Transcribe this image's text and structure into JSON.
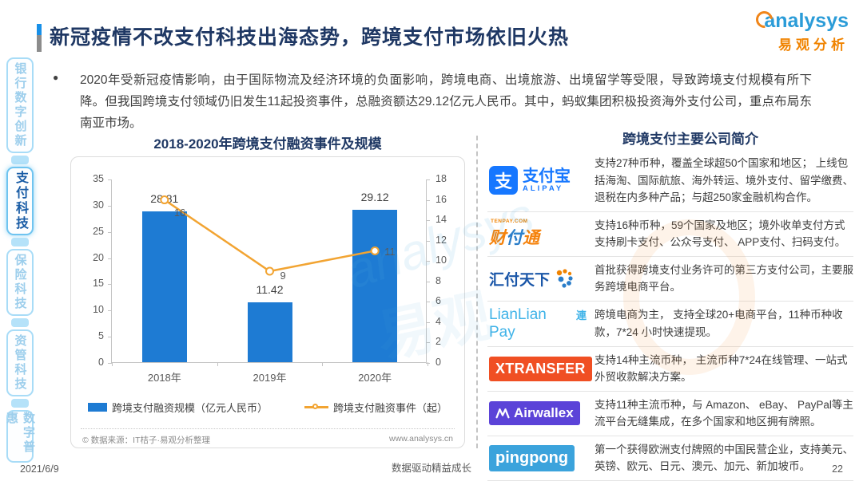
{
  "header": {
    "title": "新冠疫情不改支付科技出海态势，跨境支付市场依旧火热",
    "logo_en": "analysys",
    "logo_cn": "易观分析"
  },
  "sidebar": {
    "items": [
      {
        "label": "银行数字创新",
        "active": false
      },
      {
        "label": "支付科技",
        "active": true
      },
      {
        "label": "保险科技",
        "active": false
      },
      {
        "label": "资管科技",
        "active": false
      },
      {
        "label": "数字普惠",
        "active": false
      }
    ]
  },
  "summary": {
    "bullet": "●",
    "text": "2020年受新冠疫情影响，由于国际物流及经济环境的负面影响，跨境电商、出境旅游、出境留学等受限，导致跨境支付规模有所下降。但我国跨境支付领域仍旧发生11起投资事件，总融资额达29.12亿元人民币。其中，蚂蚁集团积极投资海外支付公司，重点布局东南亚市场。"
  },
  "chart_data": {
    "type": "bar+line",
    "title": "2018-2020年跨境支付融资事件及规模",
    "categories": [
      "2018年",
      "2019年",
      "2020年"
    ],
    "series": [
      {
        "name": "跨境支付融资规模（亿元人民币）",
        "type": "bar",
        "axis": "left",
        "values": [
          28.81,
          11.42,
          29.12
        ],
        "color": "#1E7BD3"
      },
      {
        "name": "跨境支付融资事件（起）",
        "type": "line",
        "axis": "right",
        "values": [
          16,
          9,
          11
        ],
        "color": "#F2A432"
      }
    ],
    "left_axis": {
      "min": 0,
      "max": 35,
      "ticks": [
        0,
        5,
        10,
        15,
        20,
        25,
        30,
        35
      ]
    },
    "right_axis": {
      "min": 0,
      "max": 18,
      "ticks": [
        0,
        2,
        4,
        6,
        8,
        10,
        12,
        14,
        16,
        18
      ]
    },
    "grid": false,
    "legend_position": "bottom",
    "source_left": "© 数据来源：IT桔子·易观分析整理",
    "source_right": "www.analysys.cn"
  },
  "panel": {
    "heading": "跨境支付主要公司简介",
    "companies": [
      {
        "name": "支付宝",
        "logo": {
          "square_char": "支",
          "cn": "支付宝",
          "en": "ALIPAY",
          "color": "#1677FF"
        },
        "desc": "支持27种币种，覆盖全球超50个国家和地区； 上线包括海淘、国际航旅、海外转运、境外支付、留学缴费、退税在内多种产品；与超250家金融机构合作。"
      },
      {
        "name": "财付通",
        "logo": {
          "url": "TENPAY.COM",
          "char1": "财",
          "char2": "付",
          "char3": "通",
          "color1": "#F5820B",
          "color2": "#2A7DC9"
        },
        "desc": "支持16种币种，59个国家及地区；境外收单支付方式支持刷卡支付、公众号支付、 APP支付、扫码支付。"
      },
      {
        "name": "汇付天下",
        "logo": {
          "text": "汇付天下",
          "color": "#1A56A8"
        },
        "desc": "首批获得跨境支付业务许可的第三方支付公司，主要服务跨境电商平台。"
      },
      {
        "name": "LianLian Pay",
        "logo": {
          "text": "LianLian Pay",
          "badge": "連",
          "color": "#3FB3E8"
        },
        "desc": "跨境电商为主， 支持全球20+电商平台，11种币种收款，7*24 小时快速提现。"
      },
      {
        "name": "XTRANSFER",
        "logo": {
          "text": "XTRANSFER",
          "bg": "#F04F23"
        },
        "desc": "支持14种主流币种， 主流币种7*24在线管理、一站式外贸收款解决方案。"
      },
      {
        "name": "Airwallex",
        "logo": {
          "text": "Airwallex",
          "bg": "#5B43D8"
        },
        "desc": "支持11种主流币种，与 Amazon、 eBay、 PayPal等主流平台无缝集成，在多个国家和地区拥有牌照。"
      },
      {
        "name": "pingpong",
        "logo": {
          "text": "pingpong",
          "bg": "#3BA3DC"
        },
        "desc": "第一个获得欧洲支付牌照的中国民营企业，支持美元、英镑、欧元、日元、澳元、加元、新加坡币。"
      }
    ]
  },
  "footer": {
    "date": "2021/6/9",
    "center": "数据驱动精益成长",
    "page": "22"
  },
  "colors": {
    "title_navy": "#1F3864",
    "bar_blue": "#1E7BD3",
    "line_orange": "#F2A432",
    "sidebar_active_text": "#1A5DA6",
    "logo_blue": "#2B9CD8",
    "logo_orange": "#F08300"
  }
}
